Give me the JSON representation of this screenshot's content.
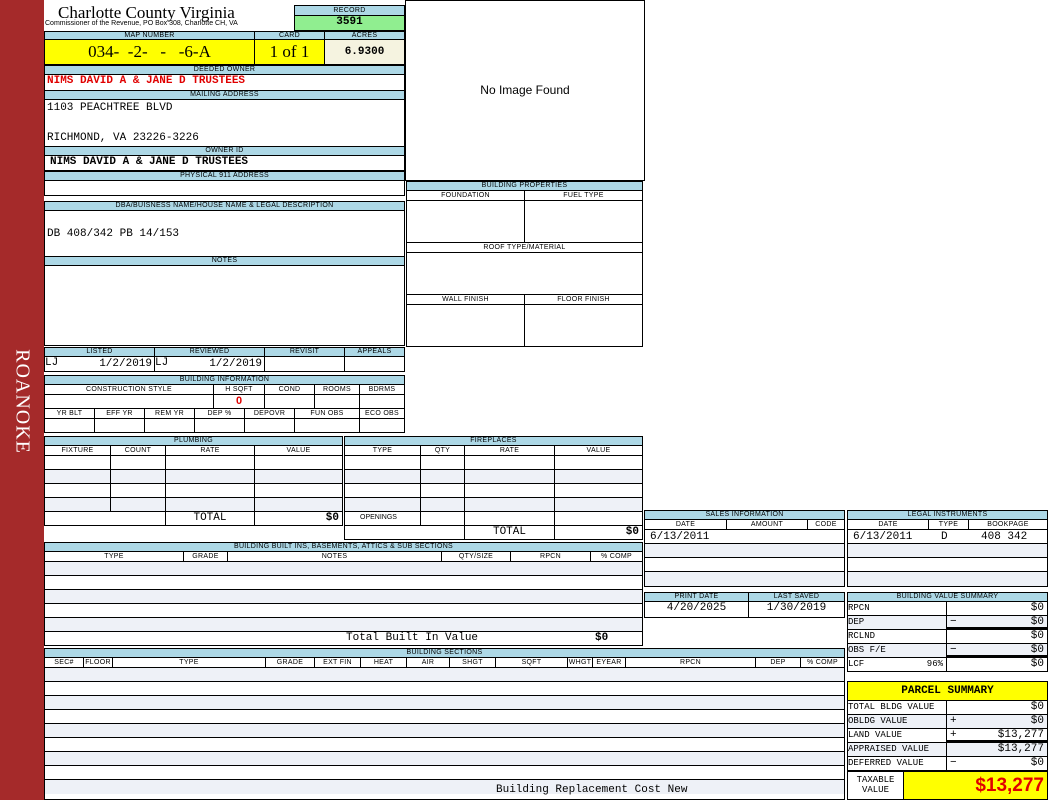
{
  "side_label": "ROANOKE",
  "header": {
    "title": "Charlotte County Virginia",
    "subtitle": "Commissioner of the Revenue, PO Box 308, Charlotte CH, VA",
    "record_label": "RECORD",
    "record": "3591"
  },
  "map": {
    "map_label": "MAP NUMBER",
    "map_number": "034-  -2-   -   -6-A",
    "card_label": "CARD",
    "card": "1 of 1",
    "acres_label": "ACRES",
    "acres": "6.9300"
  },
  "owner": {
    "deeded_label": "DEEDED OWNER",
    "deeded": "NIMS DAVID A & JANE D TRUSTEES",
    "mailing_label": "MAILING ADDRESS",
    "mail1": "1103 PEACHTREE BLVD",
    "mail2": "RICHMOND, VA 23226-3226",
    "id_label": "OWNER ID",
    "owner_id": "NIMS DAVID A & JANE D TRUSTEES",
    "phys_label": "PHYSICAL 911 ADDRESS",
    "phys": ""
  },
  "image": {
    "text": "No Image Found"
  },
  "bldg_props": {
    "title": "BUILDING PROPERTIES",
    "foundation": "FOUNDATION",
    "fuel": "FUEL TYPE",
    "roof": "ROOF TYPE/MATERIAL",
    "wall": "WALL FINISH",
    "floor": "FLOOR FINISH"
  },
  "legal": {
    "label": "DBA/BUISNESS NAME/HOUSE NAME & LEGAL DESCRIPTION",
    "value": "DB 408/342 PB 14/153",
    "notes_label": "NOTES"
  },
  "listing": {
    "listed": "LISTED",
    "reviewed": "REVIEWED",
    "revisit": "REVISIT",
    "appeals": "APPEALS",
    "listed_by": "LJ",
    "listed_date": "1/2/2019",
    "reviewed_by": "LJ",
    "reviewed_date": "1/2/2019"
  },
  "bldg_info": {
    "title": "BUILDING INFORMATION",
    "cols1": [
      "CONSTRUCTION STYLE",
      "H SQFT",
      "COND",
      "ROOMS",
      "BDRMS"
    ],
    "hsqft": "0",
    "cols2": [
      "YR BLT",
      "EFF YR",
      "REM YR",
      "DEP %",
      "DEPOVR",
      "FUN OBS",
      "ECO OBS"
    ]
  },
  "plumbing": {
    "title": "PLUMBING",
    "cols": [
      "FIXTURE",
      "COUNT",
      "RATE",
      "VALUE"
    ],
    "total_label": "TOTAL",
    "total": "$0"
  },
  "fireplaces": {
    "title": "FIREPLACES",
    "cols": [
      "TYPE",
      "QTY",
      "RATE",
      "VALUE"
    ],
    "openings": "OPENINGS",
    "total_label": "TOTAL",
    "total": "$0"
  },
  "builtins": {
    "title": "BUILDING BUILT INS, BASEMENTS, ATTICS & SUB SECTIONS",
    "cols": [
      "TYPE",
      "GRADE",
      "NOTES",
      "QTY/SIZE",
      "RPCN",
      "% COMP"
    ],
    "total_label": "Total Built In Value",
    "total": "$0"
  },
  "sections": {
    "title": "BUILDING SECTIONS",
    "cols": [
      "SEC#",
      "FLOOR",
      "TYPE",
      "GRADE",
      "EXT FIN",
      "HEAT",
      "AIR",
      "SHGT",
      "SQFT",
      "WHGT",
      "EYEAR",
      "RPCN",
      "DEP",
      "% COMP"
    ],
    "footer": "Building Replacement Cost New"
  },
  "sales": {
    "title": "SALES INFORMATION",
    "cols": [
      "DATE",
      "AMOUNT",
      "CODE"
    ],
    "date": "6/13/2011"
  },
  "instruments": {
    "title": "LEGAL INSTRUMENTS",
    "cols": [
      "DATE",
      "TYPE",
      "BOOKPAGE"
    ],
    "date": "6/13/2011",
    "type": "D",
    "bookpage": "408 342"
  },
  "dates": {
    "print_label": "PRINT DATE",
    "print": "4/20/2025",
    "saved_label": "LAST SAVED",
    "saved": "1/30/2019"
  },
  "bvs": {
    "title": "BUILDING VALUE SUMMARY",
    "rows": [
      {
        "label": "RPCN",
        "sign": "",
        "value": "$0"
      },
      {
        "label": "DEP",
        "sign": "−",
        "value": "$0"
      },
      {
        "label": "RCLND",
        "sign": "",
        "value": "$0"
      },
      {
        "label": "OBS F/E",
        "sign": "−",
        "value": "$0"
      },
      {
        "label": "LCF",
        "pct": "96%",
        "sign": "",
        "value": "$0"
      }
    ]
  },
  "parcel": {
    "title": "PARCEL SUMMARY",
    "rows": [
      {
        "label": "TOTAL BLDG VALUE",
        "sign": "",
        "value": "$0"
      },
      {
        "label": "OBLDG VALUE",
        "sign": "+",
        "value": "$0"
      },
      {
        "label": "LAND VALUE",
        "sign": "+",
        "value": "$13,277"
      },
      {
        "label": "APPRAISED VALUE",
        "sign": "",
        "value": "$13,277"
      },
      {
        "label": "DEFERRED VALUE",
        "sign": "−",
        "value": "$0"
      }
    ],
    "taxable_label": "TAXABLE VALUE",
    "taxable": "$13,277"
  },
  "colors": {
    "band": "#a52a2a",
    "header_blue": "#add8e6",
    "yellow": "#ffff00",
    "record_green": "#90ee90",
    "owner_red": "#e00000"
  }
}
